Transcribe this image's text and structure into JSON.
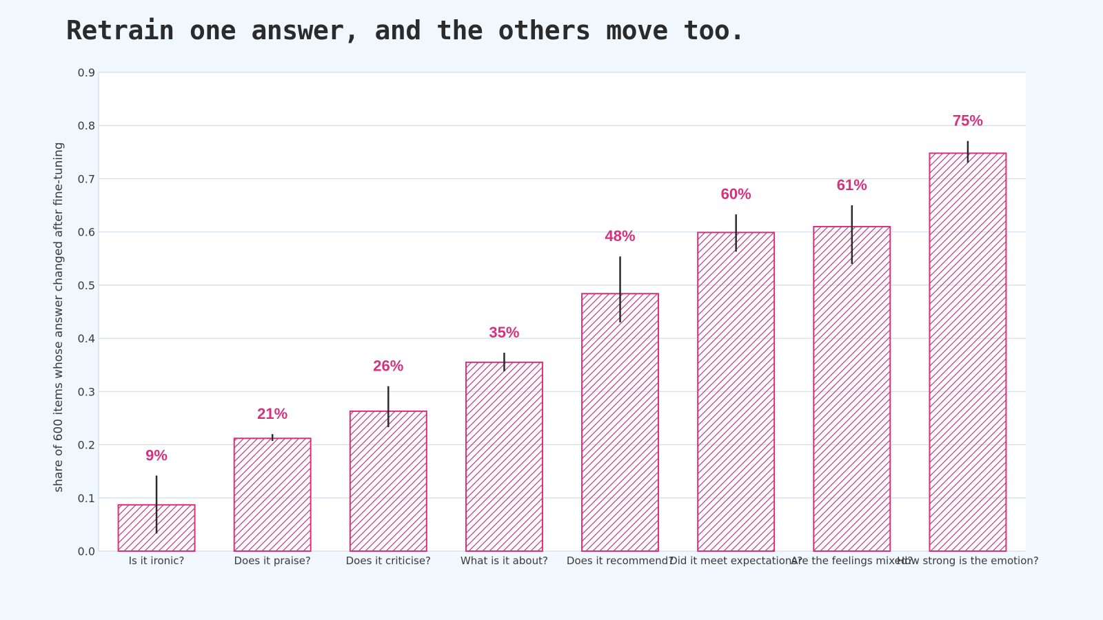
{
  "title": "Retrain one answer, and the others move too.",
  "colors": {
    "accent": "#d6307e",
    "background": "#f0f7fd",
    "plot_background": "#ffffff",
    "grid": "#cfdde9",
    "error_bar": "#2b2b2b",
    "title": "#2b2b2b"
  },
  "chart_data": {
    "type": "bar",
    "title": "Retrain one answer, and the others move too.",
    "xlabel": "",
    "ylabel": "share of 600 items whose answer changed after fine-tuning",
    "ylim": [
      0,
      0.9
    ],
    "yticks": [
      "0.0",
      "0.1",
      "0.2",
      "0.3",
      "0.4",
      "0.5",
      "0.6",
      "0.7",
      "0.8",
      "0.9"
    ],
    "grid": true,
    "bar_fill": "hatched",
    "categories": [
      "Is it ironic?",
      "Does it praise?",
      "Does it criticise?",
      "What is it about?",
      "Does it recommend?",
      "Did it meet expectations?",
      "Are the feelings mixed?",
      "How strong is the emotion?"
    ],
    "values": [
      0.087,
      0.212,
      0.263,
      0.355,
      0.484,
      0.599,
      0.61,
      0.748
    ],
    "error_low": [
      0.033,
      0.207,
      0.233,
      0.338,
      0.43,
      0.563,
      0.54,
      0.73
    ],
    "error_high": [
      0.142,
      0.22,
      0.31,
      0.373,
      0.554,
      0.633,
      0.65,
      0.771
    ],
    "data_labels": [
      "9%",
      "21%",
      "26%",
      "35%",
      "48%",
      "60%",
      "61%",
      "75%"
    ]
  }
}
